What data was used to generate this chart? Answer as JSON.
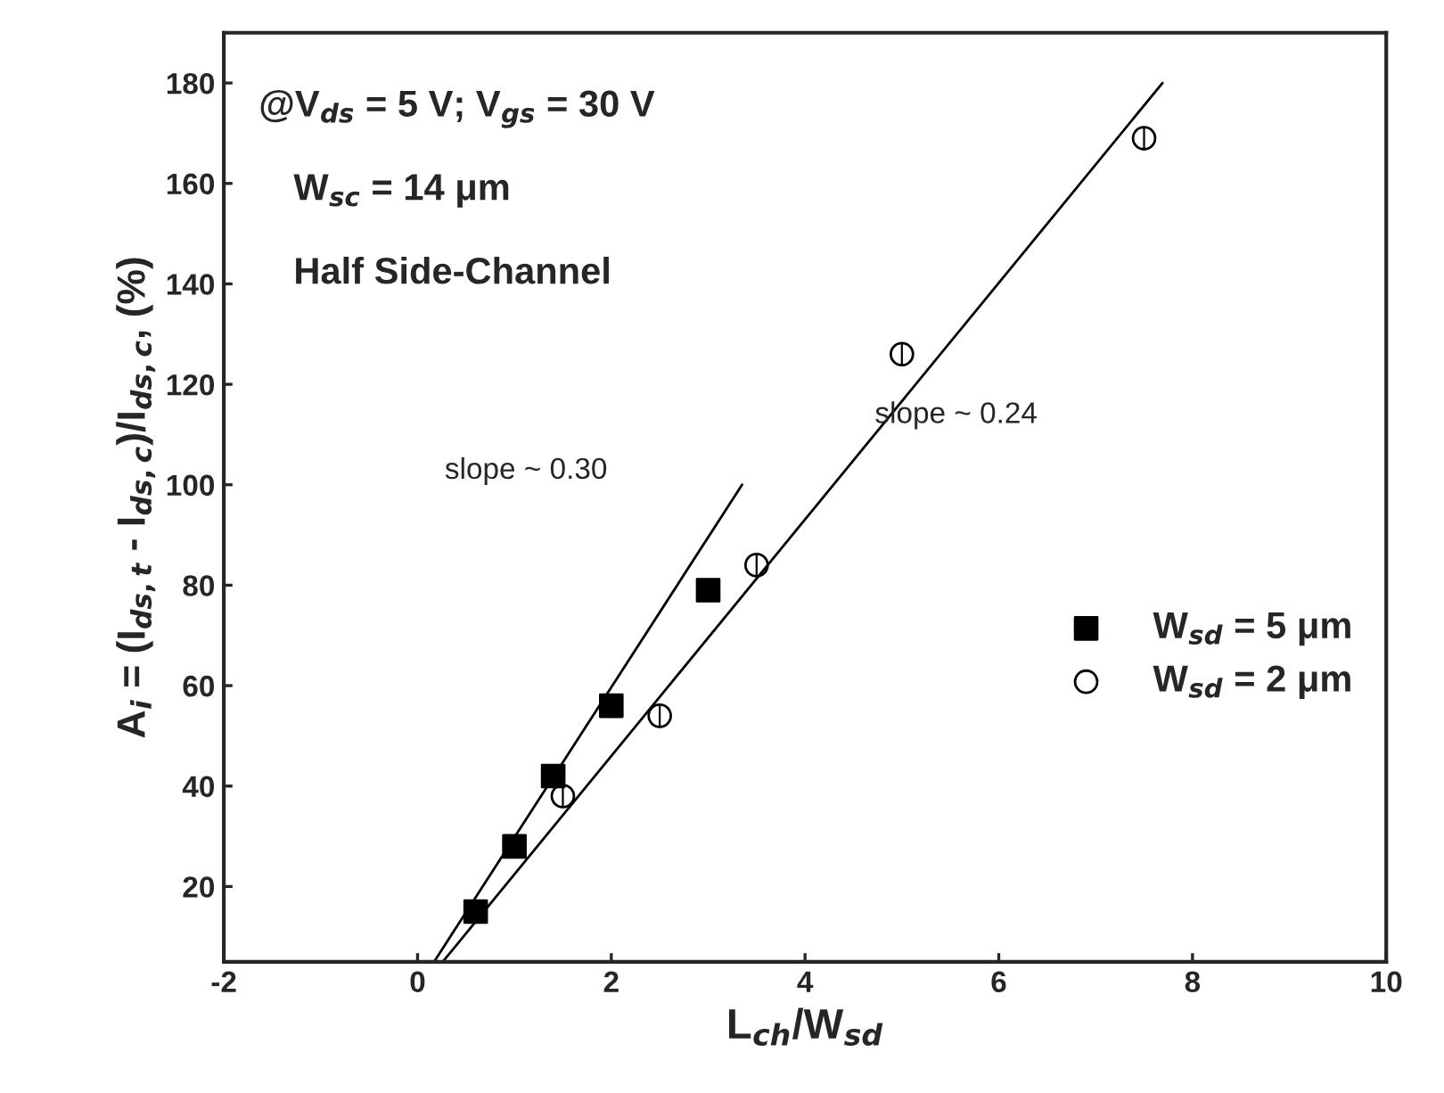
{
  "chart_data": {
    "type": "scatter",
    "xlabel": "L$_{ch}$/W$_{sd}$",
    "ylabel": "A$_{i}$ = (I$_{ds,t}$ - I$_{ds,c}$)/I$_{ds,c}$, (%)",
    "series": [
      {
        "name": "W$_{sd}$ = 5 μm",
        "marker": "square",
        "color": "#000000",
        "x": [
          0.6,
          1.0,
          1.4,
          2.0,
          3.0
        ],
        "values": [
          15,
          28,
          42,
          56,
          79
        ]
      },
      {
        "name": "W$_{sd}$ = 2 μm",
        "marker": "circle",
        "color": "#000000",
        "x": [
          1.5,
          2.5,
          3.5,
          5.0,
          7.5
        ],
        "values": [
          38,
          54,
          84,
          126,
          169
        ],
        "errors": [
          2,
          2,
          2,
          2,
          2
        ]
      },
      {
        "type": "line",
        "color": "#000000",
        "x": [
          0.17,
          3.35
        ],
        "values": [
          5,
          100
        ]
      },
      {
        "type": "line",
        "color": "#000000",
        "x": [
          0.26,
          7.69
        ],
        "values": [
          5,
          180
        ]
      }
    ],
    "annotations": [
      "@V$_{ds}$ = 5 V; V$_{gs}$ = 30 V",
      "W$_{sc}$ = 14 μm",
      "Half Side-Channel",
      "slope ~ 0.30",
      "slope ~ 0.24"
    ],
    "xlim": [
      -2,
      10
    ],
    "ylim": [
      5,
      190
    ],
    "xticks": [
      -2,
      0,
      2,
      4,
      6,
      8,
      10
    ],
    "yticks": [
      20,
      40,
      60,
      80,
      100,
      120,
      140,
      160,
      180
    ],
    "grid": false,
    "legend": "right"
  }
}
